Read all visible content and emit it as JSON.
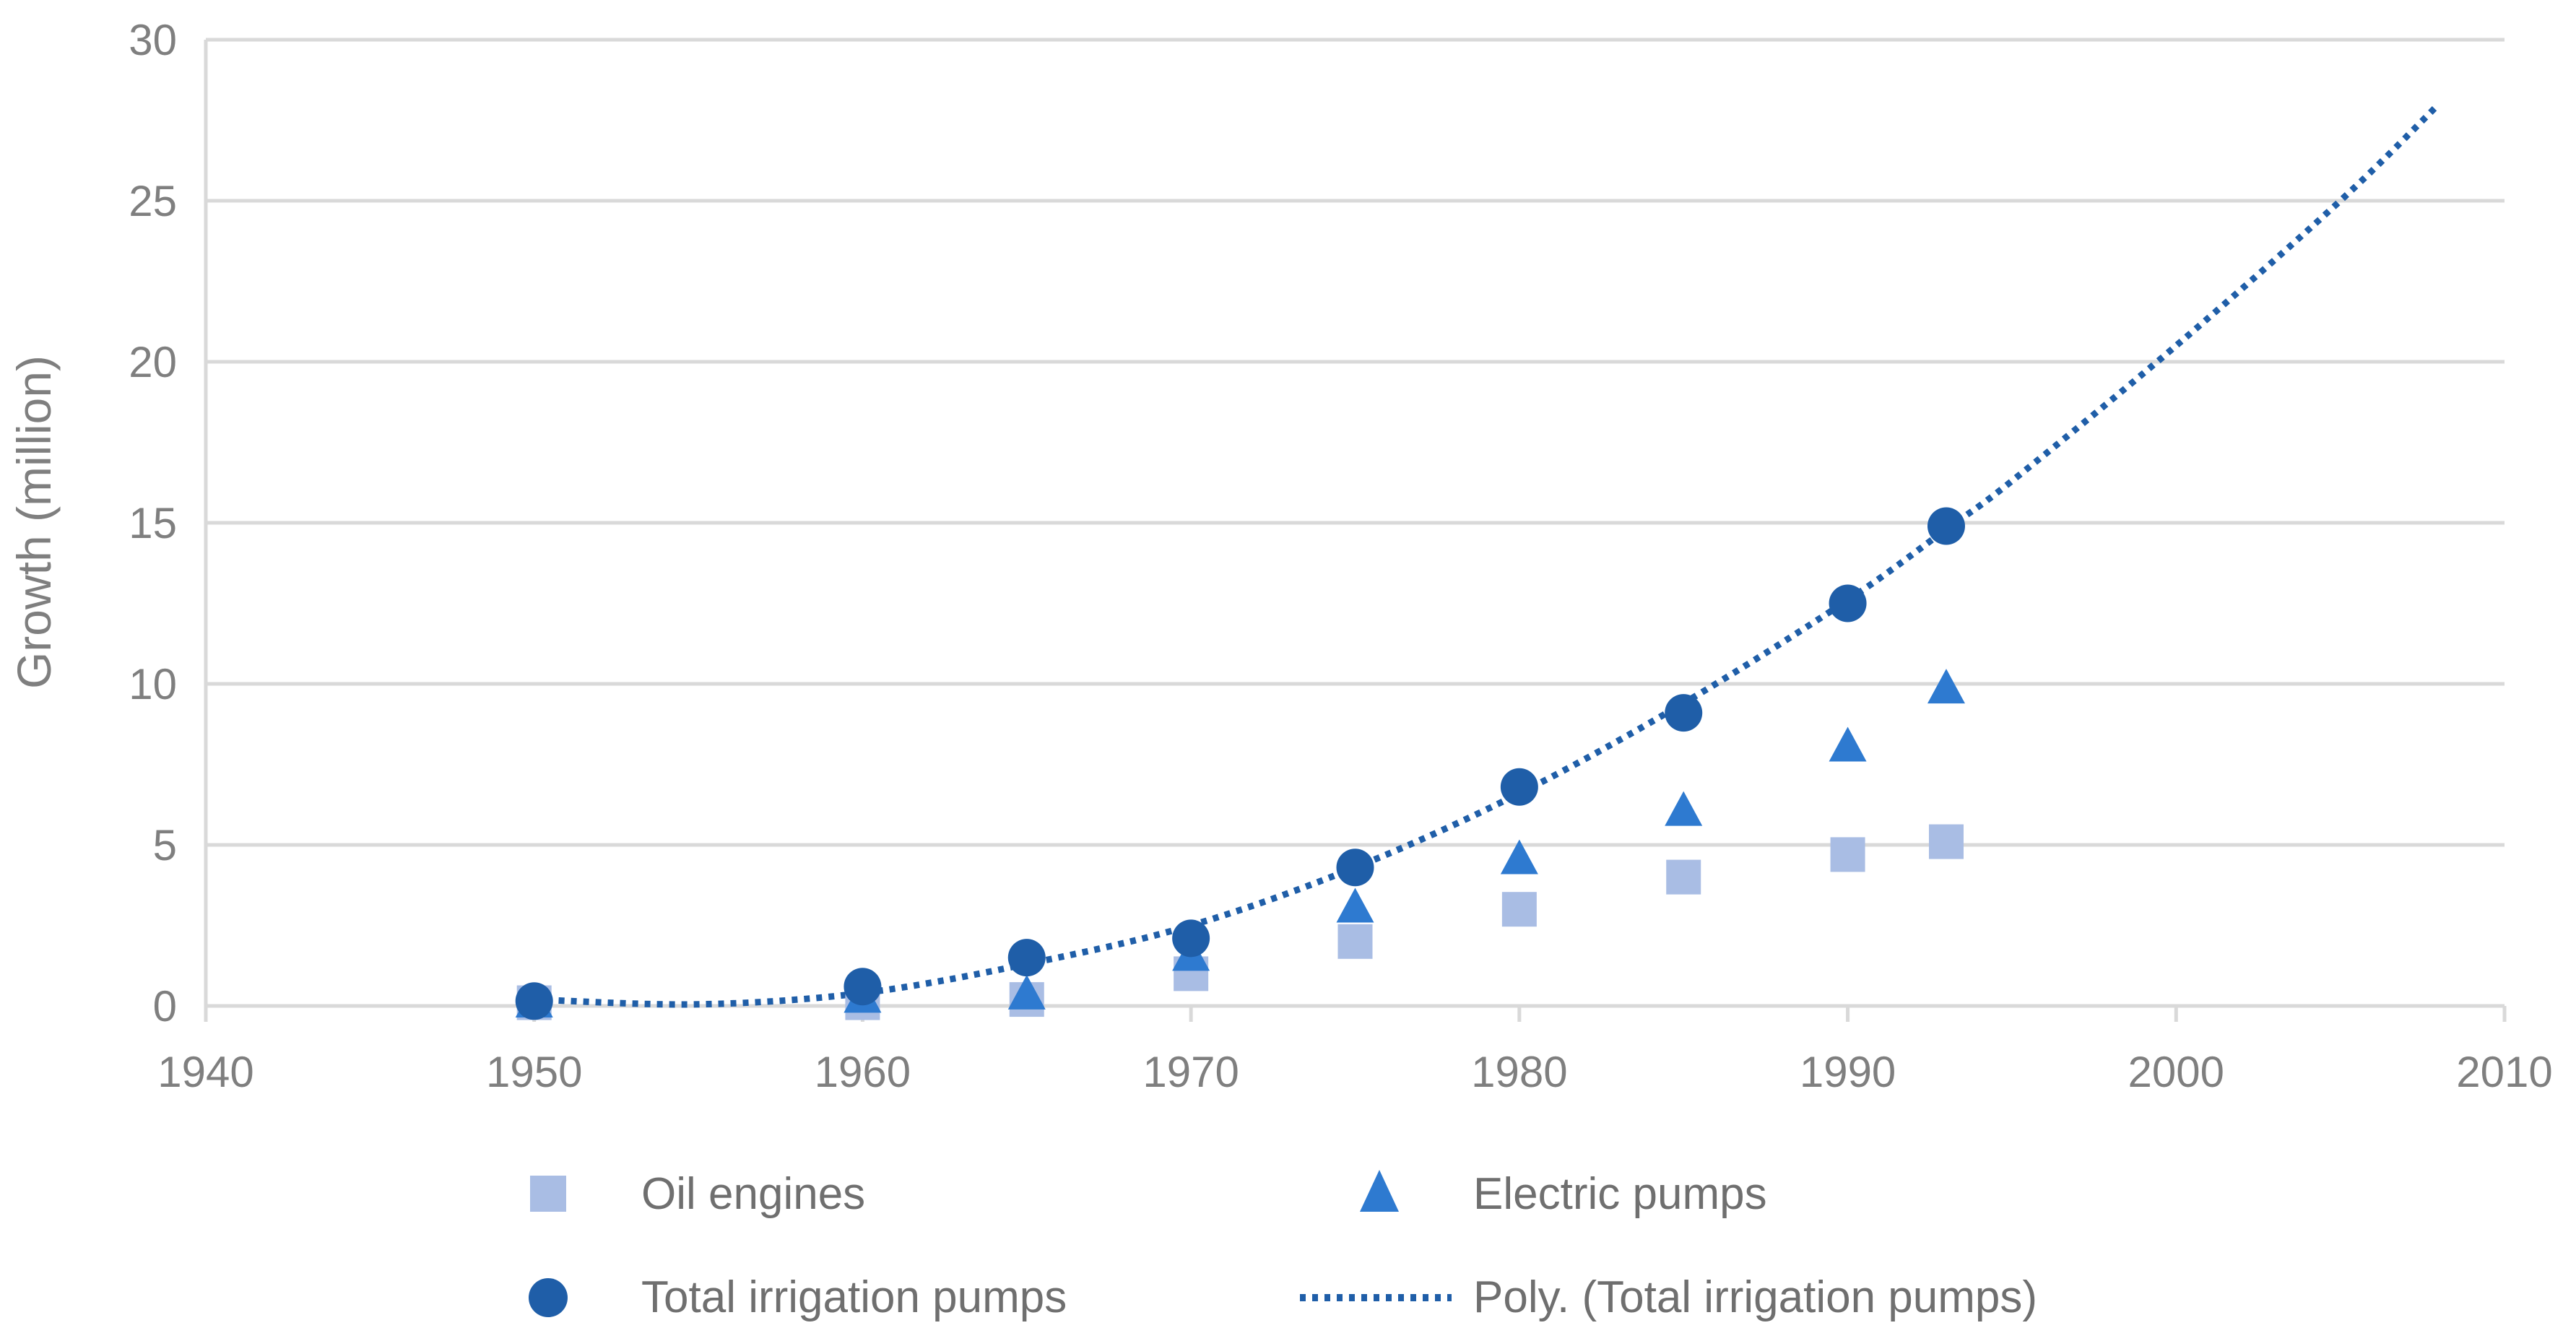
{
  "chart_data": {
    "type": "scatter",
    "xlabel": "",
    "ylabel": "Growth (million)",
    "xlim": [
      1940,
      2010
    ],
    "ylim": [
      0,
      30
    ],
    "x_ticks": [
      1940,
      1950,
      1960,
      1970,
      1980,
      1990,
      2000,
      2010
    ],
    "y_ticks": [
      0,
      5,
      10,
      15,
      20,
      25,
      30
    ],
    "grid": "horizontal",
    "legend_position": "bottom",
    "series": [
      {
        "name": "Oil engines",
        "marker": "square",
        "color": "#a9bde4",
        "x": [
          1950,
          1960,
          1965,
          1970,
          1975,
          1980,
          1985,
          1990,
          1993
        ],
        "y": [
          0.1,
          0.1,
          0.2,
          1.0,
          2.0,
          3.0,
          4.0,
          4.7,
          5.1
        ]
      },
      {
        "name": "Electric pumps",
        "marker": "triangle",
        "color": "#2e7ad0",
        "x": [
          1950,
          1960,
          1965,
          1970,
          1975,
          1980,
          1985,
          1990,
          1993
        ],
        "y": [
          0.05,
          0.2,
          0.3,
          1.5,
          3.0,
          4.5,
          6.0,
          8.0,
          9.8
        ]
      },
      {
        "name": "Total irrigation pumps",
        "marker": "circle",
        "color": "#1f5ea8",
        "x": [
          1950,
          1960,
          1965,
          1970,
          1975,
          1980,
          1985,
          1990,
          1993
        ],
        "y": [
          0.15,
          0.6,
          1.5,
          2.1,
          4.3,
          6.8,
          9.1,
          12.5,
          14.9
        ]
      }
    ],
    "trendline": {
      "name": "Poly. (Total irrigation pumps)",
      "style": "dotted",
      "color": "#1f5ea8",
      "x_range": [
        1950,
        2008
      ],
      "x": [
        1950,
        1955,
        1960,
        1965,
        1970,
        1975,
        1980,
        1985,
        1990,
        1993,
        1995,
        2000,
        2005,
        2008
      ],
      "y": [
        0.2,
        0.05,
        0.4,
        1.3,
        2.5,
        4.3,
        6.6,
        9.4,
        12.6,
        14.8,
        16.3,
        20.5,
        25.0,
        28.0
      ]
    }
  }
}
